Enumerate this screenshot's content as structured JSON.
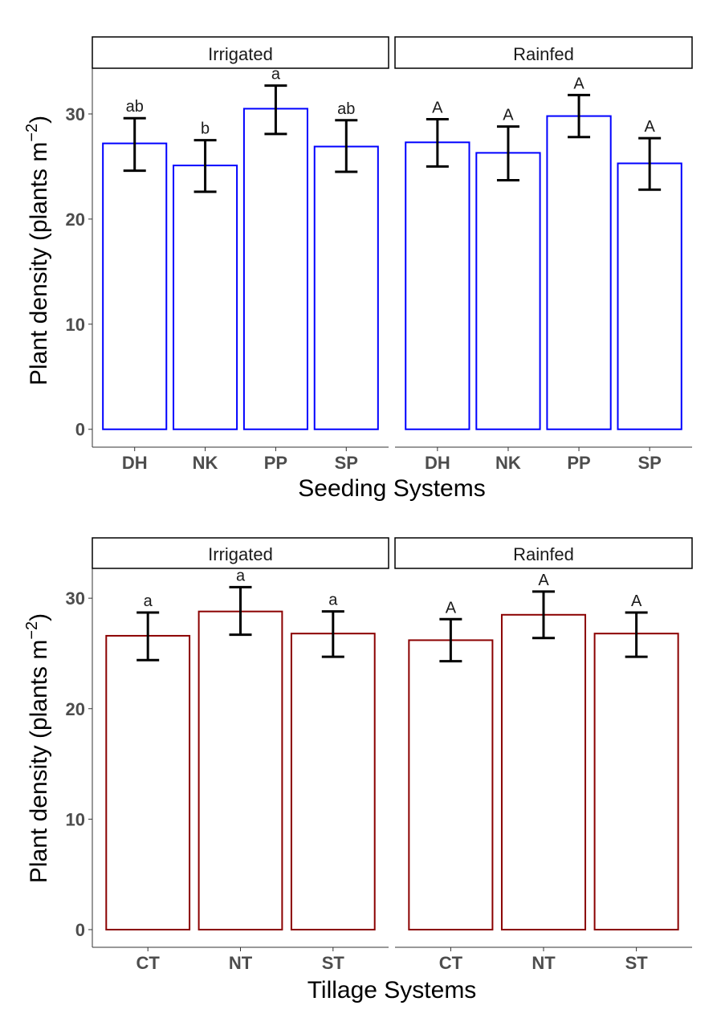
{
  "chart_data": [
    {
      "type": "bar",
      "ylabel": "Plant density (plants m",
      "ylabel_sup": "−2",
      "xlabel": "Seeding Systems",
      "ylim": [
        -1.7,
        34.35
      ],
      "yticks": [
        0,
        10,
        20,
        30
      ],
      "bar_color": "#0000ff",
      "panels": [
        {
          "title": "Irrigated",
          "categories": [
            "DH",
            "NK",
            "PP",
            "SP"
          ],
          "values": [
            27.2,
            25.1,
            30.5,
            26.9
          ],
          "err_low": [
            24.6,
            22.6,
            28.1,
            24.5
          ],
          "err_high": [
            29.6,
            27.5,
            32.7,
            29.4
          ],
          "letters": [
            "ab",
            "b",
            "a",
            "ab"
          ]
        },
        {
          "title": "Rainfed",
          "categories": [
            "DH",
            "NK",
            "PP",
            "SP"
          ],
          "values": [
            27.3,
            26.3,
            29.8,
            25.3
          ],
          "err_low": [
            25.0,
            23.7,
            27.8,
            22.8
          ],
          "err_high": [
            29.5,
            28.8,
            31.8,
            27.7
          ],
          "letters": [
            "A",
            "A",
            "A",
            "A"
          ]
        }
      ]
    },
    {
      "type": "bar",
      "ylabel": "Plant density (plants m",
      "ylabel_sup": "−2",
      "xlabel": "Tillage Systems",
      "ylim": [
        -1.6,
        32.7
      ],
      "yticks": [
        0,
        10,
        20,
        30
      ],
      "bar_color": "#8b0000",
      "panels": [
        {
          "title": "Irrigated",
          "categories": [
            "CT",
            "NT",
            "ST"
          ],
          "values": [
            26.6,
            28.8,
            26.8
          ],
          "err_low": [
            24.4,
            26.7,
            24.7
          ],
          "err_high": [
            28.7,
            31.0,
            28.8
          ],
          "letters": [
            "a",
            "a",
            "a"
          ]
        },
        {
          "title": "Rainfed",
          "categories": [
            "CT",
            "NT",
            "ST"
          ],
          "values": [
            26.2,
            28.5,
            26.8
          ],
          "err_low": [
            24.3,
            26.4,
            24.7
          ],
          "err_high": [
            28.1,
            30.6,
            28.7
          ],
          "letters": [
            "A",
            "A",
            "A"
          ]
        }
      ]
    }
  ]
}
